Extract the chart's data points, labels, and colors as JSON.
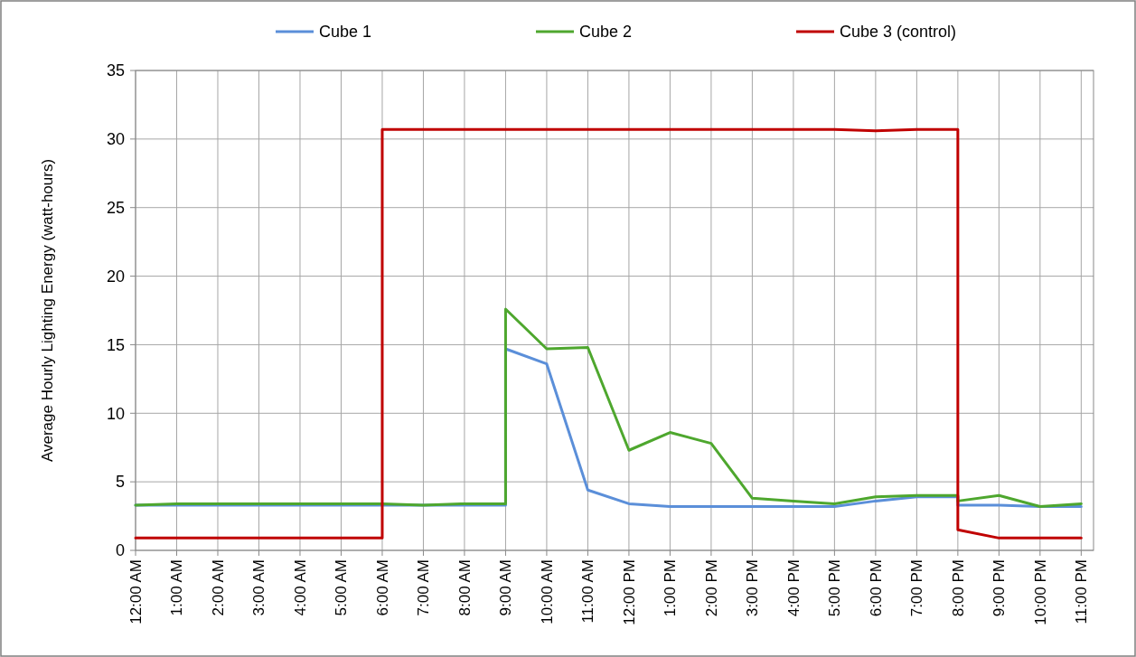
{
  "chart_data": {
    "type": "line",
    "ylabel": "Average Hourly Lighting Energy (watt-hours)",
    "xlim": [
      0,
      23.3
    ],
    "xticks": [
      {
        "value": 0,
        "label": "12:00 AM"
      },
      {
        "value": 1,
        "label": "1:00 AM"
      },
      {
        "value": 2,
        "label": "2:00 AM"
      },
      {
        "value": 3,
        "label": "3:00 AM"
      },
      {
        "value": 4,
        "label": "4:00 AM"
      },
      {
        "value": 5,
        "label": "5:00 AM"
      },
      {
        "value": 6,
        "label": "6:00 AM"
      },
      {
        "value": 7,
        "label": "7:00 AM"
      },
      {
        "value": 8,
        "label": "8:00 AM"
      },
      {
        "value": 9,
        "label": "9:00 AM"
      },
      {
        "value": 10,
        "label": "10:00 AM"
      },
      {
        "value": 11,
        "label": "11:00 AM"
      },
      {
        "value": 12,
        "label": "12:00 PM"
      },
      {
        "value": 13,
        "label": "1:00 PM"
      },
      {
        "value": 14,
        "label": "2:00 PM"
      },
      {
        "value": 15,
        "label": "3:00 PM"
      },
      {
        "value": 16,
        "label": "4:00 PM"
      },
      {
        "value": 17,
        "label": "5:00 PM"
      },
      {
        "value": 18,
        "label": "6:00 PM"
      },
      {
        "value": 19,
        "label": "7:00 PM"
      },
      {
        "value": 20,
        "label": "8:00 PM"
      },
      {
        "value": 21,
        "label": "9:00 PM"
      },
      {
        "value": 22,
        "label": "10:00 PM"
      },
      {
        "value": 23,
        "label": "11:00 PM"
      }
    ],
    "ylim": [
      0,
      35
    ],
    "yticks": [
      0,
      5,
      10,
      15,
      20,
      25,
      30,
      35
    ],
    "grid": true,
    "legend": "top",
    "marker": "none",
    "line_style": "solid",
    "series": [
      {
        "name": "Cube 1",
        "color": "#5b8fd9",
        "x": [
          0,
          1,
          2,
          3,
          4,
          5,
          6,
          7,
          8,
          9,
          9,
          10,
          11,
          12,
          13,
          14,
          15,
          16,
          17,
          18,
          19,
          20,
          20,
          21,
          22,
          23
        ],
        "values": [
          3.3,
          3.3,
          3.3,
          3.3,
          3.3,
          3.3,
          3.3,
          3.3,
          3.3,
          3.3,
          14.7,
          13.6,
          4.4,
          3.4,
          3.2,
          3.2,
          3.2,
          3.2,
          3.2,
          3.6,
          3.9,
          3.9,
          3.3,
          3.3,
          3.2,
          3.2
        ]
      },
      {
        "name": "Cube 2",
        "color": "#4ea72e",
        "x": [
          0,
          1,
          2,
          3,
          4,
          5,
          6,
          7,
          8,
          9,
          9,
          10,
          11,
          12,
          13,
          14,
          15,
          16,
          17,
          18,
          19,
          20,
          20,
          21,
          22,
          23
        ],
        "values": [
          3.3,
          3.4,
          3.4,
          3.4,
          3.4,
          3.4,
          3.4,
          3.3,
          3.4,
          3.4,
          17.6,
          14.7,
          14.8,
          7.3,
          8.6,
          7.8,
          3.8,
          3.6,
          3.4,
          3.9,
          4.0,
          4.0,
          3.6,
          4.0,
          3.2,
          3.4
        ]
      },
      {
        "name": "Cube 3 (control)",
        "color": "#c00000",
        "x": [
          0,
          1,
          2,
          3,
          4,
          5,
          6,
          6,
          7,
          8,
          9,
          10,
          11,
          12,
          13,
          14,
          15,
          16,
          17,
          18,
          19,
          20,
          20,
          21,
          22,
          23
        ],
        "values": [
          0.9,
          0.9,
          0.9,
          0.9,
          0.9,
          0.9,
          0.9,
          30.7,
          30.7,
          30.7,
          30.7,
          30.7,
          30.7,
          30.7,
          30.7,
          30.7,
          30.7,
          30.7,
          30.7,
          30.6,
          30.7,
          30.7,
          1.5,
          0.9,
          0.9,
          0.9
        ]
      }
    ]
  }
}
